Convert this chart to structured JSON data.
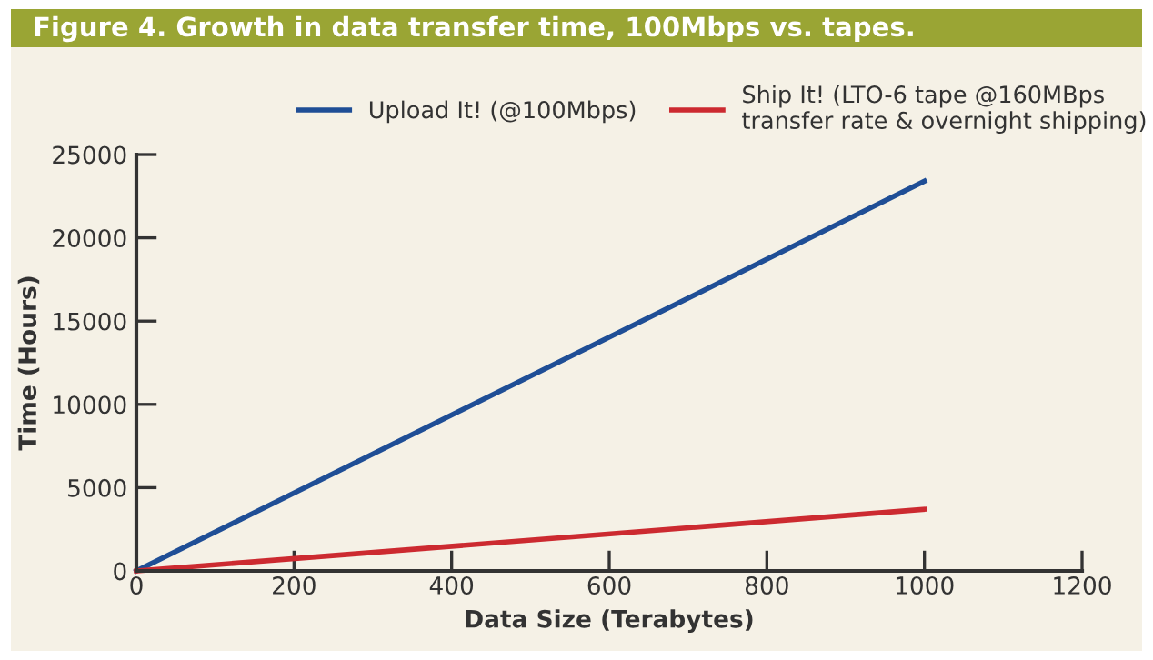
{
  "chart_data": {
    "type": "line",
    "title": "Figure 4. Growth in data transfer time, 100Mbps vs. tapes.",
    "xlabel": "Data Size (Terabytes)",
    "ylabel": "Time (Hours)",
    "x": [
      0,
      1000
    ],
    "series": [
      {
        "name": "Upload It! (@100Mbps)",
        "color": "#1f4e96",
        "values": [
          0,
          23400
        ]
      },
      {
        "name": "Ship It! (LTO-6 tape @160MBps\ntransfer rate & overnight shipping)",
        "color": "#cc2a30",
        "values": [
          0,
          3700
        ]
      }
    ],
    "xlim": [
      0,
      1200
    ],
    "xticks": [
      0,
      200,
      400,
      600,
      800,
      1000,
      1200
    ],
    "ylim": [
      0,
      25000
    ],
    "yticks": [
      0,
      5000,
      10000,
      15000,
      20000,
      25000
    ],
    "grid": false,
    "legend": "top",
    "marker": "none",
    "line_style": "solid"
  }
}
